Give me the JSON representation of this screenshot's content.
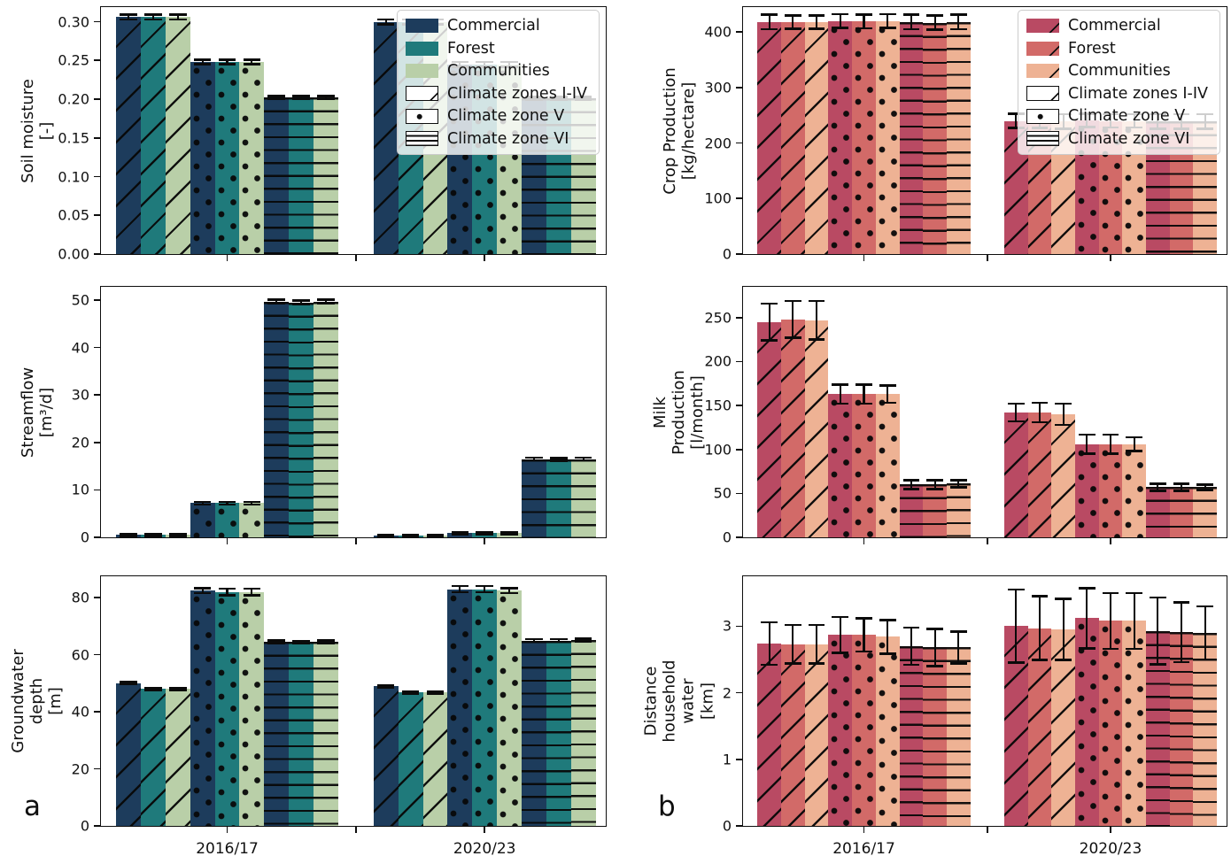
{
  "panel_labels": {
    "a": "a",
    "b": "b"
  },
  "periods": [
    "2016/17",
    "2020/23"
  ],
  "land_uses": [
    "Commercial",
    "Forest",
    "Communities"
  ],
  "climate_zone_labels": [
    "Climate zones I-IV",
    "Climate zone V",
    "Climate zone VI"
  ],
  "zone_keys": [
    "I-IV",
    "V",
    "VI"
  ],
  "zone_hatches": {
    "I-IV": "diag",
    "V": "dots",
    "VI": "horiz"
  },
  "palettes": {
    "left": [
      "#1d3c5c",
      "#1f7a7b",
      "#b9cfa8"
    ],
    "right": [
      "#b94a63",
      "#d26a68",
      "#eeb294"
    ]
  },
  "chart_data": [
    {
      "id": "soil-moisture",
      "type": "bar",
      "ylabel": "Soil moisture\n[-]",
      "palette": "left",
      "show_legend": true,
      "legend_swatch_hatched": false,
      "show_xlabels": false,
      "ylim": [
        0,
        0.319
      ],
      "yticks": [
        "0.00",
        "0.05",
        "0.10",
        "0.15",
        "0.20",
        "0.25",
        "0.30"
      ],
      "values": {
        "2016/17": {
          "I-IV": [
            0.306,
            0.306,
            0.306
          ],
          "V": [
            0.248,
            0.248,
            0.248
          ],
          "VI": [
            0.202,
            0.202,
            0.202
          ]
        },
        "2020/23": {
          "I-IV": [
            0.3,
            0.3,
            0.3
          ],
          "V": [
            0.245,
            0.245,
            0.245
          ],
          "VI": [
            0.201,
            0.201,
            0.201
          ]
        }
      },
      "errors": {
        "2016/17": {
          "I-IV": [
            0.003,
            0.003,
            0.003
          ],
          "V": [
            0.003,
            0.003,
            0.003
          ],
          "VI": [
            0.002,
            0.002,
            0.002
          ]
        },
        "2020/23": {
          "I-IV": [
            0.003,
            0.003,
            0.003
          ],
          "V": [
            0.003,
            0.003,
            0.003
          ],
          "VI": [
            0.002,
            0.002,
            0.002
          ]
        }
      }
    },
    {
      "id": "streamflow",
      "type": "bar",
      "ylabel": "Streamflow\n[m³/d]",
      "palette": "left",
      "show_legend": false,
      "legend_swatch_hatched": false,
      "show_xlabels": false,
      "ylim": [
        0,
        52.8
      ],
      "yticks": [
        "0",
        "10",
        "20",
        "30",
        "40",
        "50"
      ],
      "values": {
        "2016/17": {
          "I-IV": [
            0.5,
            0.5,
            0.5
          ],
          "V": [
            7.2,
            7.2,
            7.2
          ],
          "VI": [
            49.7,
            49.5,
            49.7
          ]
        },
        "2020/23": {
          "I-IV": [
            0.3,
            0.3,
            0.3
          ],
          "V": [
            0.9,
            0.9,
            0.9
          ],
          "VI": [
            16.5,
            16.4,
            16.5
          ]
        }
      },
      "errors": {
        "2016/17": {
          "I-IV": [
            0.2,
            0.2,
            0.2
          ],
          "V": [
            0.3,
            0.3,
            0.3
          ],
          "VI": [
            0.4,
            0.4,
            0.4
          ]
        },
        "2020/23": {
          "I-IV": [
            0.15,
            0.15,
            0.15
          ],
          "V": [
            0.2,
            0.2,
            0.2
          ],
          "VI": [
            0.3,
            0.3,
            0.3
          ]
        }
      }
    },
    {
      "id": "groundwater-depth",
      "type": "bar",
      "ylabel": "Groundwater\ndepth\n[m]",
      "palette": "left",
      "show_legend": false,
      "legend_swatch_hatched": false,
      "show_xlabels": true,
      "ylim": [
        0,
        87.5
      ],
      "yticks": [
        "0",
        "20",
        "40",
        "60",
        "80"
      ],
      "values": {
        "2016/17": {
          "I-IV": [
            50,
            48,
            48
          ],
          "V": [
            82.5,
            82,
            82
          ],
          "VI": [
            64.5,
            64.4,
            64.5
          ]
        },
        "2020/23": {
          "I-IV": [
            49,
            46.8,
            46.8
          ],
          "V": [
            83,
            83,
            82.5
          ],
          "VI": [
            65,
            65,
            65.2
          ]
        }
      },
      "errors": {
        "2016/17": {
          "I-IV": [
            0.4,
            0.4,
            0.4
          ],
          "V": [
            0.9,
            1.1,
            1.1
          ],
          "VI": [
            0.5,
            0.5,
            0.5
          ]
        },
        "2020/23": {
          "I-IV": [
            0.4,
            0.4,
            0.4
          ],
          "V": [
            1.1,
            1.1,
            0.9
          ],
          "VI": [
            0.5,
            0.5,
            0.5
          ]
        }
      }
    },
    {
      "id": "crop-production",
      "type": "bar",
      "ylabel": "Crop Production\n[kg/hectare]",
      "palette": "right",
      "show_legend": true,
      "legend_swatch_hatched": true,
      "show_xlabels": false,
      "ylim": [
        0,
        445
      ],
      "yticks": [
        "0",
        "100",
        "200",
        "300",
        "400"
      ],
      "values": {
        "2016/17": {
          "I-IV": [
            418,
            418,
            418
          ],
          "V": [
            420,
            419,
            420
          ],
          "VI": [
            418,
            417,
            418
          ]
        },
        "2020/23": {
          "I-IV": [
            240,
            240,
            239
          ],
          "V": [
            241,
            240,
            240
          ],
          "VI": [
            239,
            239,
            239
          ]
        }
      },
      "errors": {
        "2016/17": {
          "I-IV": [
            13,
            12,
            12
          ],
          "V": [
            12,
            12,
            12
          ],
          "VI": [
            13,
            13,
            13
          ]
        },
        "2020/23": {
          "I-IV": [
            13,
            13,
            13
          ],
          "V": [
            12,
            12,
            12
          ],
          "VI": [
            13,
            13,
            13
          ]
        }
      }
    },
    {
      "id": "milk-production",
      "type": "bar",
      "ylabel": "Milk\nProduction\n[l/month]",
      "palette": "right",
      "show_legend": false,
      "legend_swatch_hatched": false,
      "show_xlabels": false,
      "ylim": [
        0,
        285
      ],
      "yticks": [
        "0",
        "50",
        "100",
        "150",
        "200",
        "250"
      ],
      "values": {
        "2016/17": {
          "I-IV": [
            245,
            248,
            247
          ],
          "V": [
            163,
            163,
            163
          ],
          "VI": [
            60,
            60,
            61
          ]
        },
        "2020/23": {
          "I-IV": [
            142,
            142,
            140
          ],
          "V": [
            106,
            106,
            106
          ],
          "VI": [
            57,
            57,
            57
          ]
        }
      },
      "errors": {
        "2016/17": {
          "I-IV": [
            21,
            21,
            22
          ],
          "V": [
            11,
            11,
            10
          ],
          "VI": [
            5,
            5,
            4
          ]
        },
        "2020/23": {
          "I-IV": [
            10,
            11,
            12
          ],
          "V": [
            11,
            11,
            8
          ],
          "VI": [
            4,
            4,
            3
          ]
        }
      }
    },
    {
      "id": "distance-household-water",
      "type": "bar",
      "ylabel": "Distance\nhousehold\nwater\n[km]",
      "palette": "right",
      "show_legend": false,
      "legend_swatch_hatched": false,
      "show_xlabels": true,
      "ylim": [
        0,
        3.75
      ],
      "yticks": [
        "0",
        "1",
        "2",
        "3"
      ],
      "values": {
        "2016/17": {
          "I-IV": [
            2.74,
            2.73,
            2.73
          ],
          "V": [
            2.87,
            2.87,
            2.84
          ],
          "VI": [
            2.7,
            2.68,
            2.68
          ]
        },
        "2020/23": {
          "I-IV": [
            3.0,
            2.97,
            2.95
          ],
          "V": [
            3.12,
            3.08,
            3.08
          ],
          "VI": [
            2.93,
            2.91,
            2.9
          ]
        }
      },
      "errors": {
        "2016/17": {
          "I-IV": [
            0.32,
            0.29,
            0.29
          ],
          "V": [
            0.27,
            0.25,
            0.25
          ],
          "VI": [
            0.28,
            0.28,
            0.24
          ]
        },
        "2020/23": {
          "I-IV": [
            0.55,
            0.48,
            0.46
          ],
          "V": [
            0.45,
            0.42,
            0.42
          ],
          "VI": [
            0.5,
            0.45,
            0.4
          ]
        }
      }
    }
  ]
}
